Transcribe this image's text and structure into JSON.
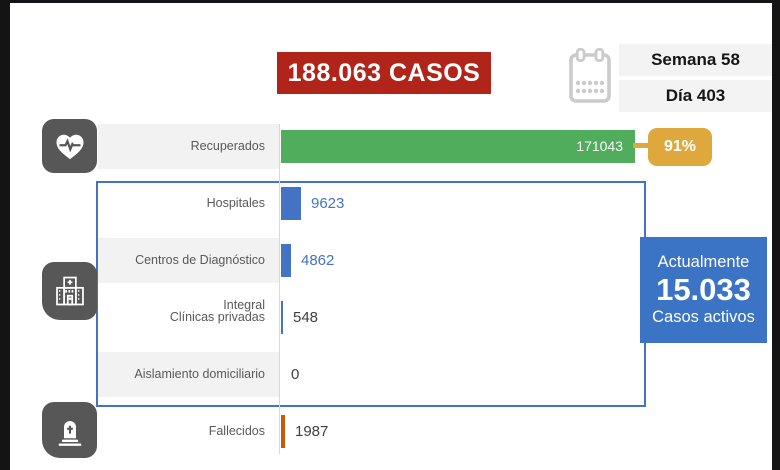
{
  "header": {
    "total_cases": "188.063 CASOS",
    "week_label": "Semana 58",
    "day_label": "Día 403"
  },
  "chart_data": {
    "type": "bar",
    "orientation": "horizontal",
    "title": "188.063 CASOS",
    "categories": [
      "Recuperados",
      "Hospitales",
      "Centros de Diagnóstico Integral",
      "Clínicas privadas",
      "Aislamiento domiciliario",
      "Fallecidos"
    ],
    "values": [
      171043,
      9623,
      4862,
      548,
      0,
      1987
    ],
    "xlim": [
      0,
      171043
    ],
    "grid": false,
    "legend": false,
    "annotations": {
      "recovered_percent": "91%",
      "active_cases_label": "Actualmente",
      "active_cases_value": "15.033",
      "active_cases_sublabel": "Casos activos"
    }
  },
  "rows": [
    {
      "label": "Recuperados",
      "value": 171043,
      "display": "171043",
      "color": "#4FAD5B",
      "text_color": "#FFFFFF",
      "inside": true
    },
    {
      "label": "Hospitales",
      "value": 9623,
      "display": "9623",
      "color": "#4472C4",
      "text_color": "#4472C4",
      "inside": false
    },
    {
      "label": "Centros de Diagnóstico Integral",
      "value": 4862,
      "display": "4862",
      "color": "#4472C4",
      "text_color": "#4472C4",
      "inside": false
    },
    {
      "label": "Clínicas privadas",
      "value": 548,
      "display": "548",
      "color": "#4472C4",
      "text_color": "#404040",
      "inside": false
    },
    {
      "label": "Aislamiento domiciliario",
      "value": 0,
      "display": "0",
      "color": "#4472C4",
      "text_color": "#404040",
      "inside": false
    },
    {
      "label": "Fallecidos",
      "value": 1987,
      "display": "1987",
      "color": "#C55A11",
      "text_color": "#404040",
      "inside": false
    }
  ],
  "badge": {
    "recovered_pct": "91%"
  },
  "active_box": {
    "top": "Actualmente",
    "number": "15.033",
    "bottom": "Casos activos"
  },
  "icons": {
    "recovered": "heart-pulse-icon",
    "treatment": "hospital-icon",
    "deaths": "tombstone-icon",
    "date": "calendar-icon"
  },
  "colors": {
    "total_box": "#B02419",
    "recovered_bar": "#4FAD5B",
    "blue_bar": "#4472C4",
    "deaths_bar": "#C55A11",
    "pct_badge": "#DFA83C",
    "active_box": "#3B73C5",
    "icon_tile": "#575757"
  }
}
